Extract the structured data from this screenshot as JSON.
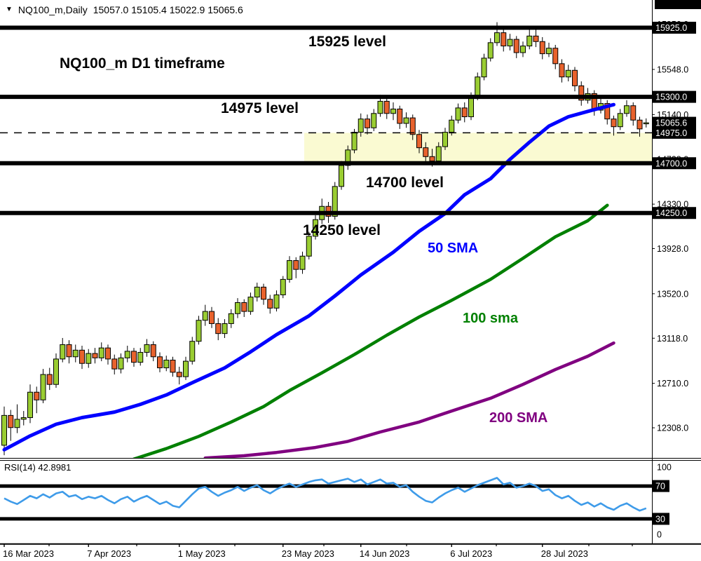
{
  "header": {
    "symbol": "NQ100_m,Daily",
    "ohlc": "15057.0 15105.4 15022.9 15065.6"
  },
  "annotations": {
    "title": "NQ100_m D1 timeframe",
    "level_15925": "15925 level",
    "level_14975": "14975 level",
    "level_14700": "14700 level",
    "level_14250": "14250 level",
    "sma50": "50 SMA",
    "sma100": "100 sma",
    "sma200": "200 SMA"
  },
  "colors": {
    "bull": "#9ACD32",
    "bear": "#E8622D",
    "wick": "#000000",
    "sma50": "#0000FF",
    "sma100": "#008000",
    "sma200": "#800080",
    "rsi": "#3E9BE9",
    "zone": "#FAFAD2",
    "level": "#000000",
    "box_bg": "#000000",
    "box_fg": "#FFFFFF",
    "axis_text": "#000000"
  },
  "chart_data": {
    "type": "candlestick",
    "symbol": "NQ100_m",
    "timeframe": "D1",
    "price_axis_plain": [
      15956.0,
      15548.0,
      15140.0,
      14738.0,
      14330.0,
      13928.0,
      13520.0,
      13118.0,
      12710.0,
      12308.0
    ],
    "price_axis_boxed": [
      "15925.0",
      "15300.0",
      "15065.6",
      "14975.0",
      "14700.0",
      "14250.0"
    ],
    "level_lines": [
      15925,
      15300,
      14700,
      14250
    ],
    "dashed_level": 14975,
    "current_price": 15065.6,
    "zone": {
      "price_top": 14975,
      "price_bottom": 14700,
      "from_index": 46.7
    },
    "x_labels": [
      {
        "i": 0,
        "label": "16 Mar 2023"
      },
      {
        "i": 13,
        "label": "7 Apr 2023"
      },
      {
        "i": 27,
        "label": "1 May 2023"
      },
      {
        "i": 43,
        "label": "23 May 2023"
      },
      {
        "i": 55,
        "label": "14 Jun 2023"
      },
      {
        "i": 69,
        "label": "6 Jul 2023"
      },
      {
        "i": 83,
        "label": "28 Jul 2023"
      }
    ],
    "candles": [
      [
        12150,
        12500,
        12060,
        12420
      ],
      [
        12420,
        12470,
        12190,
        12310
      ],
      [
        12310,
        12520,
        12260,
        12385
      ],
      [
        12385,
        12460,
        12330,
        12400
      ],
      [
        12400,
        12700,
        12350,
        12630
      ],
      [
        12630,
        12680,
        12440,
        12560
      ],
      [
        12560,
        12840,
        12530,
        12790
      ],
      [
        12790,
        12850,
        12650,
        12700
      ],
      [
        12700,
        12980,
        12670,
        12930
      ],
      [
        12930,
        13120,
        12900,
        13060
      ],
      [
        13060,
        13100,
        12890,
        12950
      ],
      [
        12950,
        13060,
        12900,
        13010
      ],
      [
        13010,
        13050,
        12840,
        12890
      ],
      [
        12890,
        13020,
        12850,
        12980
      ],
      [
        12980,
        13030,
        12890,
        12940
      ],
      [
        12940,
        13080,
        12910,
        13030
      ],
      [
        13030,
        13060,
        12880,
        12930
      ],
      [
        12930,
        12970,
        12790,
        12840
      ],
      [
        12840,
        12980,
        12800,
        12940
      ],
      [
        12940,
        13050,
        12900,
        13000
      ],
      [
        13000,
        13030,
        12860,
        12900
      ],
      [
        12900,
        13030,
        12870,
        12990
      ],
      [
        12990,
        13110,
        12950,
        13060
      ],
      [
        13060,
        13090,
        12910,
        12950
      ],
      [
        12950,
        12990,
        12810,
        12850
      ],
      [
        12850,
        12960,
        12820,
        12920
      ],
      [
        12920,
        12950,
        12770,
        12810
      ],
      [
        12810,
        12860,
        12700,
        12770
      ],
      [
        12770,
        12950,
        12740,
        12910
      ],
      [
        12910,
        13130,
        12880,
        13090
      ],
      [
        13090,
        13320,
        13060,
        13280
      ],
      [
        13280,
        13420,
        13230,
        13360
      ],
      [
        13360,
        13400,
        13210,
        13250
      ],
      [
        13250,
        13300,
        13100,
        13160
      ],
      [
        13160,
        13290,
        13120,
        13250
      ],
      [
        13250,
        13380,
        13210,
        13340
      ],
      [
        13340,
        13480,
        13300,
        13440
      ],
      [
        13440,
        13470,
        13310,
        13360
      ],
      [
        13360,
        13530,
        13330,
        13490
      ],
      [
        13490,
        13620,
        13450,
        13580
      ],
      [
        13580,
        13610,
        13420,
        13470
      ],
      [
        13470,
        13510,
        13340,
        13390
      ],
      [
        13390,
        13550,
        13360,
        13510
      ],
      [
        13510,
        13680,
        13480,
        13650
      ],
      [
        13650,
        13860,
        13620,
        13820
      ],
      [
        13820,
        13850,
        13660,
        13740
      ],
      [
        13740,
        13900,
        13700,
        13860
      ],
      [
        13860,
        14080,
        13830,
        14040
      ],
      [
        14040,
        14230,
        14010,
        14190
      ],
      [
        14190,
        14380,
        14150,
        14310
      ],
      [
        14310,
        14350,
        14160,
        14220
      ],
      [
        14220,
        14530,
        14190,
        14490
      ],
      [
        14490,
        14720,
        14460,
        14680
      ],
      [
        14680,
        14860,
        14640,
        14820
      ],
      [
        14820,
        15010,
        14790,
        14980
      ],
      [
        14980,
        15150,
        14940,
        15100
      ],
      [
        15100,
        15140,
        14960,
        15020
      ],
      [
        15020,
        15190,
        14990,
        15150
      ],
      [
        15150,
        15320,
        15120,
        15260
      ],
      [
        15260,
        15300,
        15100,
        15150
      ],
      [
        15150,
        15250,
        15090,
        15190
      ],
      [
        15190,
        15220,
        15010,
        15060
      ],
      [
        15060,
        15160,
        15020,
        15110
      ],
      [
        15110,
        15140,
        14910,
        14960
      ],
      [
        14960,
        15000,
        14790,
        14840
      ],
      [
        14840,
        14890,
        14690,
        14760
      ],
      [
        14760,
        14830,
        14670,
        14720
      ],
      [
        14720,
        14890,
        14700,
        14850
      ],
      [
        14850,
        15020,
        14820,
        14980
      ],
      [
        14980,
        15130,
        14950,
        15090
      ],
      [
        15090,
        15240,
        15060,
        15200
      ],
      [
        15200,
        15250,
        15070,
        15120
      ],
      [
        15120,
        15340,
        15090,
        15300
      ],
      [
        15300,
        15520,
        15270,
        15480
      ],
      [
        15480,
        15690,
        15450,
        15650
      ],
      [
        15650,
        15830,
        15620,
        15790
      ],
      [
        15790,
        15975,
        15760,
        15880
      ],
      [
        15880,
        15930,
        15710,
        15760
      ],
      [
        15760,
        15870,
        15720,
        15820
      ],
      [
        15820,
        15850,
        15650,
        15700
      ],
      [
        15700,
        15800,
        15660,
        15760
      ],
      [
        15760,
        15920,
        15730,
        15850
      ],
      [
        15850,
        15910,
        15750,
        15800
      ],
      [
        15800,
        15840,
        15640,
        15690
      ],
      [
        15690,
        15790,
        15660,
        15740
      ],
      [
        15740,
        15770,
        15550,
        15600
      ],
      [
        15600,
        15640,
        15430,
        15480
      ],
      [
        15480,
        15590,
        15440,
        15540
      ],
      [
        15540,
        15570,
        15350,
        15400
      ],
      [
        15400,
        15440,
        15220,
        15270
      ],
      [
        15270,
        15380,
        15240,
        15330
      ],
      [
        15330,
        15360,
        15130,
        15180
      ],
      [
        15180,
        15290,
        15150,
        15240
      ],
      [
        15240,
        15270,
        15050,
        15100
      ],
      [
        15100,
        15130,
        14950,
        15030
      ],
      [
        15030,
        15190,
        15000,
        15150
      ],
      [
        15150,
        15270,
        15120,
        15220
      ],
      [
        15220,
        15250,
        15040,
        15090
      ],
      [
        15090,
        15120,
        14940,
        15010
      ],
      [
        15057,
        15105.4,
        15022.9,
        15065.6
      ]
    ],
    "sma50": [
      [
        0,
        12110
      ],
      [
        4,
        12235
      ],
      [
        8,
        12340
      ],
      [
        12,
        12400
      ],
      [
        17,
        12450
      ],
      [
        21,
        12520
      ],
      [
        25,
        12605
      ],
      [
        29,
        12715
      ],
      [
        34,
        12850
      ],
      [
        38,
        12995
      ],
      [
        42,
        13150
      ],
      [
        47,
        13320
      ],
      [
        51,
        13500
      ],
      [
        55,
        13690
      ],
      [
        60,
        13895
      ],
      [
        64,
        14085
      ],
      [
        68,
        14245
      ],
      [
        71,
        14415
      ],
      [
        75,
        14560
      ],
      [
        78,
        14735
      ],
      [
        81,
        14890
      ],
      [
        84,
        15035
      ],
      [
        87,
        15120
      ],
      [
        91,
        15185
      ],
      [
        94,
        15230
      ]
    ],
    "sma100": [
      [
        20,
        12025
      ],
      [
        25,
        12120
      ],
      [
        30,
        12230
      ],
      [
        35,
        12360
      ],
      [
        40,
        12500
      ],
      [
        44,
        12645
      ],
      [
        49,
        12805
      ],
      [
        54,
        12970
      ],
      [
        59,
        13145
      ],
      [
        64,
        13310
      ],
      [
        69,
        13460
      ],
      [
        75,
        13650
      ],
      [
        80,
        13840
      ],
      [
        85,
        14035
      ],
      [
        90,
        14180
      ],
      [
        93,
        14320
      ]
    ],
    "sma200": [
      [
        31,
        12035
      ],
      [
        37,
        12055
      ],
      [
        42,
        12085
      ],
      [
        48,
        12130
      ],
      [
        53,
        12185
      ],
      [
        58,
        12270
      ],
      [
        64,
        12360
      ],
      [
        69,
        12460
      ],
      [
        75,
        12575
      ],
      [
        80,
        12700
      ],
      [
        85,
        12835
      ],
      [
        90,
        12955
      ],
      [
        94,
        13075
      ]
    ],
    "rsi": {
      "label": "RSI(14) 42.8981",
      "period": 14,
      "current": 42.8981,
      "axis_plain": [
        100,
        0
      ],
      "axis_boxed": [
        70,
        30
      ],
      "level_lines": [
        70,
        30
      ],
      "values": [
        55,
        51,
        48,
        53,
        58,
        55,
        60,
        56,
        61,
        63,
        57,
        59,
        54,
        57,
        55,
        58,
        53,
        49,
        54,
        57,
        51,
        55,
        58,
        53,
        48,
        51,
        46,
        44,
        52,
        60,
        67,
        69,
        63,
        58,
        62,
        65,
        69,
        64,
        68,
        71,
        65,
        61,
        66,
        70,
        73,
        69,
        72,
        75,
        77,
        78,
        73,
        75,
        77,
        79,
        75,
        78,
        72,
        75,
        78,
        73,
        74,
        69,
        71,
        63,
        57,
        52,
        50,
        56,
        61,
        65,
        68,
        63,
        67,
        71,
        74,
        77,
        80,
        72,
        74,
        68,
        70,
        73,
        70,
        64,
        66,
        59,
        55,
        58,
        52,
        47,
        50,
        45,
        49,
        44,
        41,
        46,
        49,
        44,
        40,
        42.9
      ]
    }
  }
}
